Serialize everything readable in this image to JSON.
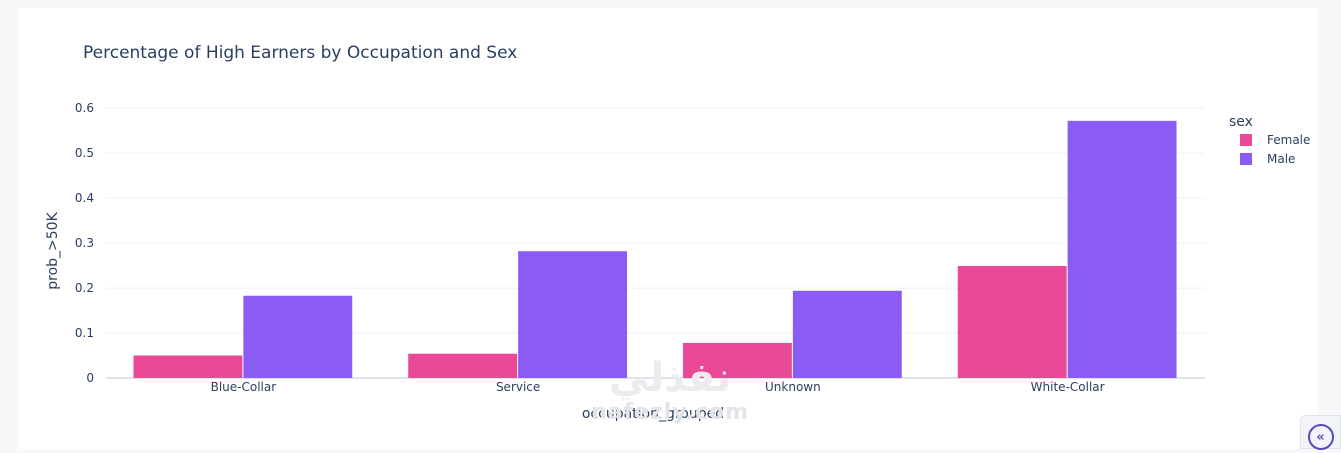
{
  "chart_data": {
    "type": "bar",
    "title": "Percentage of High Earners by Occupation and Sex",
    "xlabel": "occupation_grouped",
    "ylabel": "prob_>50K",
    "categories": [
      "Blue-Collar",
      "Service",
      "Unknown",
      "White-Collar"
    ],
    "series": [
      {
        "name": "Female",
        "color": "#ea4998",
        "values": [
          0.05,
          0.054,
          0.078,
          0.249
        ]
      },
      {
        "name": "Male",
        "color": "#8b5cf4",
        "values": [
          0.183,
          0.282,
          0.194,
          0.572
        ]
      }
    ],
    "ylim": [
      0,
      0.6
    ],
    "yticks": [
      "0",
      "0.1",
      "0.2",
      "0.3",
      "0.4",
      "0.5",
      "0.6"
    ],
    "legend_title": "sex",
    "legend_position": "top-right",
    "grid": true
  },
  "watermark": {
    "logo_text": "نفذلي",
    "url_text": "nafezly.com"
  },
  "corner_button": {
    "icon": "double-chevron-left-icon",
    "glyph": "«"
  }
}
